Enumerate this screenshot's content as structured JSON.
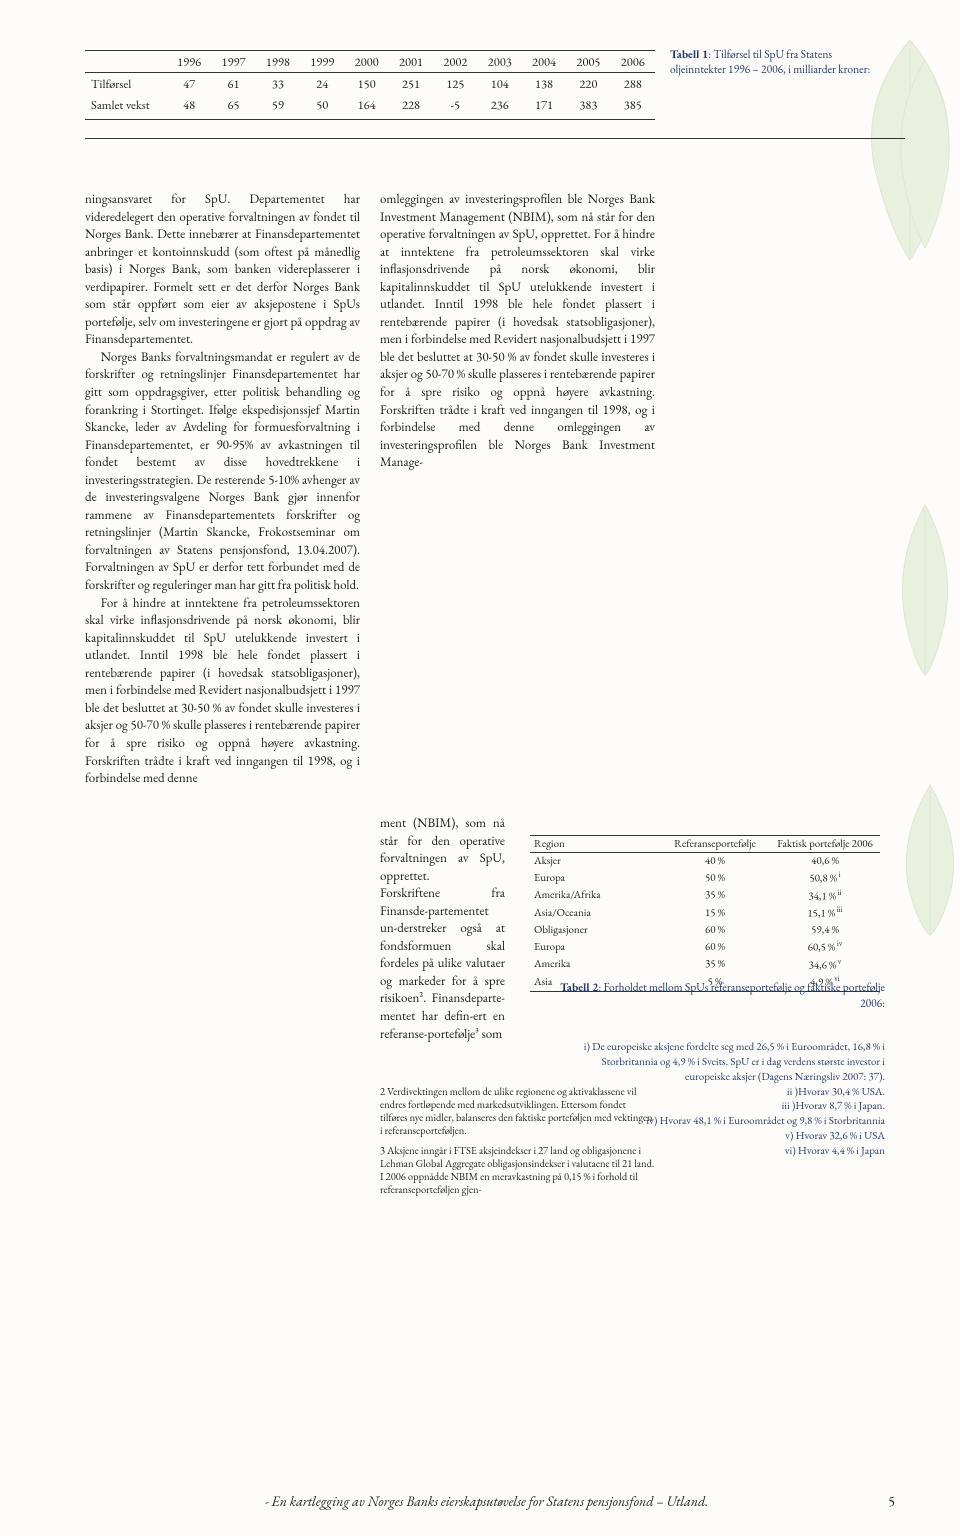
{
  "table1": {
    "years": [
      "1996",
      "1997",
      "1998",
      "1999",
      "2000",
      "2001",
      "2002",
      "2003",
      "2004",
      "2005",
      "2006"
    ],
    "row1_label": "Tilførsel",
    "row1": [
      "47",
      "61",
      "33",
      "24",
      "150",
      "251",
      "125",
      "104",
      "138",
      "220",
      "288"
    ],
    "row2_label": "Samlet vekst",
    "row2": [
      "48",
      "65",
      "59",
      "50",
      "164",
      "228",
      "-5",
      "236",
      "171",
      "383",
      "385"
    ],
    "caption_bold": "Tabell 1",
    "caption_rest": ": Tilførsel til SpU fra Statens oljeinntekter 1996 – 2006, i milliarder kroner:"
  },
  "body_left": [
    "ningsansvaret for SpU. Departementet har videredelegert den operative forvaltningen av fondet til Norges Bank. Dette innebærer at Finansdepartementet anbringer et kontoinnskudd (som oftest på månedlig basis) i Norges Bank, som banken videreplasserer i verdipapirer. Formelt sett er det derfor Norges Bank som står oppført som eier av aksjepostene i SpUs portefølje, selv om investeringene er gjort på oppdrag av Finansdepartementet.",
    "Norges Banks forvaltningsmandat er regulert av de forskrifter og retningslinjer Finansdepartementet har gitt som oppdragsgiver, etter politisk behandling og forankring i Stortinget. Ifølge ekspedisjonssjef Martin Skancke, leder av Avdeling for formuesforvaltning i Finansdepartementet, er 90-95% av avkastningen til fondet bestemt av disse hovedtrekkene i investeringsstrategien. De resterende 5-10% avhenger av de investeringsvalgene Norges Bank gjør innenfor rammene av Finansdepartementets forskrifter og retningslinjer (Martin Skancke, Frokostseminar om forvaltningen av Statens pensjonsfond, 13.04.2007). Forvaltningen av SpU er derfor tett forbundet med de forskrifter og reguleringer man har gitt fra politisk hold.",
    "For å hindre at inntektene fra petroleumssektoren skal virke inflasjonsdrivende på norsk økonomi, blir kapitalinnskuddet til SpU utelukkende investert i utlandet. Inntil 1998 ble hele fondet plassert i rentebærende papirer (i hovedsak statsobligasjoner), men i forbindelse med Revidert nasjonalbudsjett i 1997 ble det besluttet at 30-50 % av fondet skulle investeres i aksjer og 50-70 % skulle plasseres i rentebærende papirer for å spre risiko og oppnå høyere avkastning. Forskriften trådte i kraft ved inngangen til 1998, og i forbindelse med denne"
  ],
  "body_mid_upper": [
    "omleggingen av investeringsprofilen ble Norges Bank Investment Management (NBIM), som nå står for den operative forvaltningen av SpU, opprettet. For å hindre at inntektene fra petroleumssektoren skal virke inflasjonsdrivende på norsk økonomi, blir kapitalinnskuddet til SpU utelukkende investert i utlandet. Inntil 1998 ble hele fondet plassert i rentebærende papirer (i hovedsak statsobligasjoner), men i forbindelse med Revidert nasjonalbudsjett i 1997 ble det besluttet at 30-50 % av fondet skulle investeres i aksjer og 50-70 % skulle plasseres i rentebærende papirer for å spre risiko og oppnå høyere avkastning. Forskriften trådte i kraft ved inngangen til 1998, og i forbindelse med denne omleggingen av investeringsprofilen ble Norges Bank Investment Manage-"
  ],
  "body_mid_narrow": "ment (NBIM), som nå står for den operative forvaltningen av SpU, opprettet.\nForskriftene fra Finansde-partementet un-derstreker også at fondsformuen skal fordeles på ulike valutaer og markeder for å spre risikoen². Finansdeparte-mentet har defin-ert en referanse-portefølje³ som",
  "footnotes": [
    "2    Verdivektingen mellom de ulike regionene og aktivaklassene vil endres fortløpende med markedsutviklingen. Ettersom fondet tilføres nye midler, balanseres den faktiske porteføljen med vektingen i referanseporteføljen.",
    "3    Aksjene inngår i FTSE aksjeindekser i 27 land og obligasjonene i Lehman Global Aggregate obligasjonsindekser i valutaene til 21 land. I 2006 oppnådde NBIM en meravkastning på 0,15 % i forhold til referanseporteføljen gjen-"
  ],
  "table2": {
    "headers": [
      "Region",
      "Referanseportefølje",
      "Faktisk portefølje 2006"
    ],
    "rows": [
      [
        "Aksjer",
        "40 %",
        "40,6 %",
        ""
      ],
      [
        "Europa",
        "50 %",
        "50,8 %",
        "i"
      ],
      [
        "Amerika/Afrika",
        "35 %",
        "34,1 %",
        "ii"
      ],
      [
        "Asia/Oceania",
        "15 %",
        "15,1 %",
        "iii"
      ],
      [
        "Obligasjoner",
        "60 %",
        "59,4 %",
        ""
      ],
      [
        "Europa",
        "60 %",
        "60,5 %",
        "iv"
      ],
      [
        "Amerika",
        "35 %",
        "34,6 %",
        "v"
      ],
      [
        "Asia",
        "5 %",
        "4,9 %",
        "vi"
      ]
    ],
    "caption_bold": "Tabell 2",
    "caption_rest": ": Forholdet mellom SpUs referanseportefølje og faktiske portefølje 2006:",
    "notes": [
      "i) De europeiske aksjene fordelte seg med 26,5 % i Euroområdet, 16,8 % i Storbritannia og 4,9 % i Sveits. SpU er i dag verdens største investor i europeiske aksjer (Dagens Næringsliv 2007: 37).",
      "ii )Hvorav 30,4 % USA.",
      "iii )Hvorav 8,7 % i Japan.",
      "iv) Hvorav 48,1 % i Euroområdet og 9,8 % i Storbritannia",
      "v) Hvorav 32,6 % i USA",
      "vi) Hvorav 4,4 % i Japan"
    ]
  },
  "footer": {
    "text": "- En kartlegging av Norges Banks eierskapsutøvelse for Statens pensjonsfond – Utland.",
    "page": "5"
  },
  "colors": {
    "caption": "#223a6a",
    "leaf": "#c7dcad",
    "leaf_vein": "#a6bd8c",
    "text": "#1a1a1a",
    "rule": "#333333"
  }
}
